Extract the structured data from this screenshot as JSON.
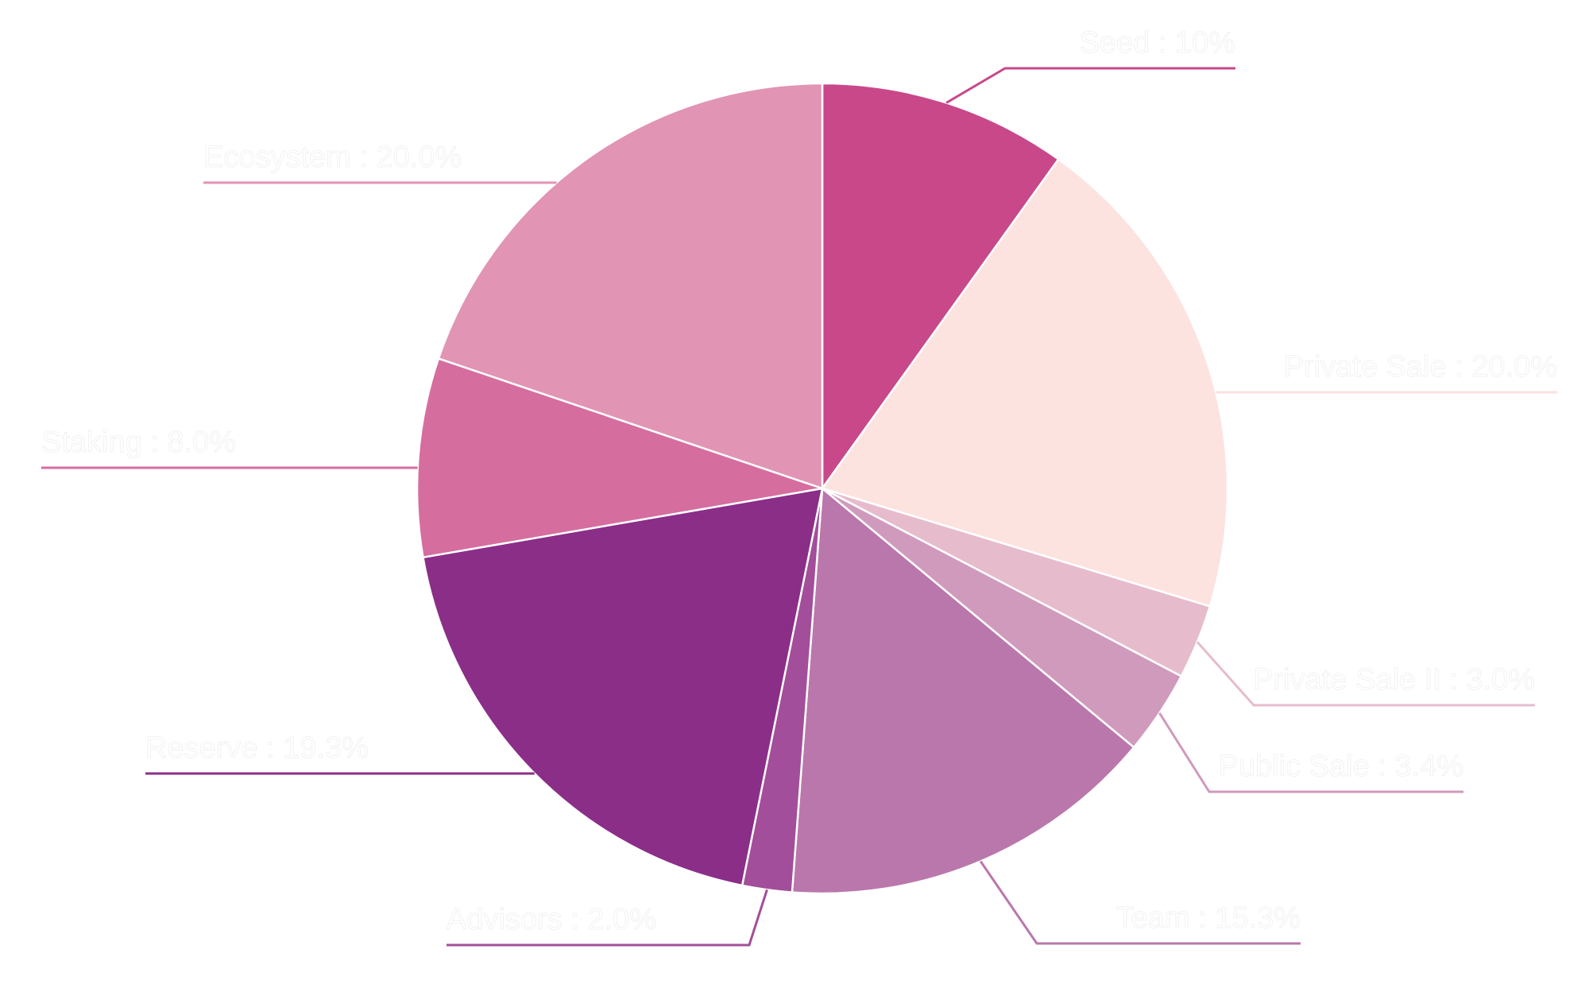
{
  "chart_data": {
    "type": "pie",
    "title": "",
    "slices": [
      {
        "label": "Seed",
        "value": 10.0,
        "display": "Seed : 10%",
        "color": "#C8488A"
      },
      {
        "label": "Private Sale",
        "value": 20.0,
        "display": "Private Sale : 20.0%",
        "color": "#FCE3E0"
      },
      {
        "label": "Private Sale II",
        "value": 3.0,
        "display": "Private Sale II : 3.0%",
        "color": "#E6BCCD"
      },
      {
        "label": "Public Sale",
        "value": 3.4,
        "display": "Public Sale : 3.4%",
        "color": "#D09ABD"
      },
      {
        "label": "Team",
        "value": 15.3,
        "display": "Team : 15.3%",
        "color": "#BA77AB"
      },
      {
        "label": "Advisors",
        "value": 2.0,
        "display": "Advisors : 2.0%",
        "color": "#A24E9A"
      },
      {
        "label": "Reserve",
        "value": 19.3,
        "display": "Reserve : 19.3%",
        "color": "#8B2E88"
      },
      {
        "label": "Staking",
        "value": 8.0,
        "display": "Staking : 8.0%",
        "color": "#D66D9F"
      },
      {
        "label": "Ecosystem",
        "value": 20.0,
        "display": "Ecosystem : 20.0%",
        "color": "#E194B4"
      }
    ],
    "start_angle": "top",
    "direction": "clockwise",
    "legend": "none"
  }
}
